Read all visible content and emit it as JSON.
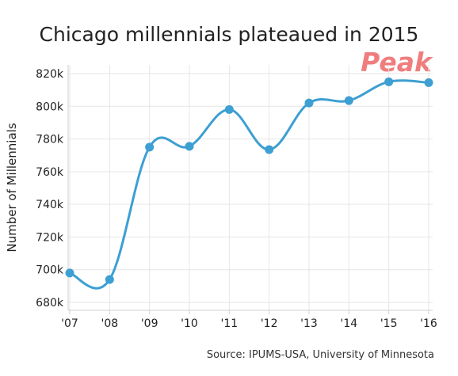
{
  "chart_data": {
    "type": "line",
    "title": "Chicago millennials plateaued in 2015",
    "ylabel": "Number of Millennials",
    "xlabel": "",
    "categories": [
      "'07",
      "'08",
      "'09",
      "'10",
      "'11",
      "'12",
      "'13",
      "'14",
      "'15",
      "'16"
    ],
    "values": [
      698000,
      694000,
      775000,
      775500,
      798000,
      773500,
      802000,
      803500,
      815000,
      814500
    ],
    "ylim": [
      680000,
      820000
    ],
    "yticks": [
      680000,
      700000,
      720000,
      740000,
      760000,
      780000,
      800000,
      820000
    ],
    "ytick_labels": [
      "680k",
      "700k",
      "720k",
      "740k",
      "760k",
      "780k",
      "800k",
      "820k"
    ],
    "grid": true,
    "annotation": "Peak",
    "source": "Source: IPUMS-USA, University of Minnesota",
    "colors": {
      "line": "#3d9fd2",
      "annotation": "#f07d7d",
      "grid": "#e6e6e6"
    }
  }
}
